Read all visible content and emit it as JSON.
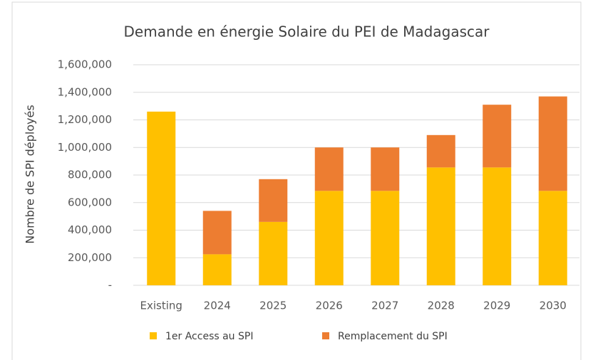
{
  "chart_data": {
    "type": "stacked_bar",
    "title": "Demande en énergie Solaire du PEI de Madagascar",
    "y_label": "Nombre de SPI déployés",
    "categories": [
      "Existing",
      "2024",
      "2025",
      "2026",
      "2027",
      "2028",
      "2029",
      "2030"
    ],
    "series": [
      {
        "name": "1er Access au SPI",
        "color": "#FFC000",
        "values": [
          1260000,
          225000,
          460000,
          685000,
          685000,
          855000,
          855000,
          685000
        ]
      },
      {
        "name": "Remplacement du SPI",
        "color": "#ED7D31",
        "values": [
          0,
          315000,
          310000,
          315000,
          315000,
          235000,
          455000,
          685000
        ]
      }
    ],
    "ylim": [
      0,
      1600000
    ],
    "yticks": [
      {
        "value": 0,
        "label": "-"
      },
      {
        "value": 200000,
        "label": "200,000"
      },
      {
        "value": 400000,
        "label": "400,000"
      },
      {
        "value": 600000,
        "label": "600,000"
      },
      {
        "value": 800000,
        "label": "800,000"
      },
      {
        "value": 1000000,
        "label": "1,000,000"
      },
      {
        "value": 1200000,
        "label": "1,200,000"
      },
      {
        "value": 1400000,
        "label": "1,400,000"
      },
      {
        "value": 1600000,
        "label": "1,600,000"
      }
    ],
    "grid": true,
    "legend": "bottom"
  }
}
